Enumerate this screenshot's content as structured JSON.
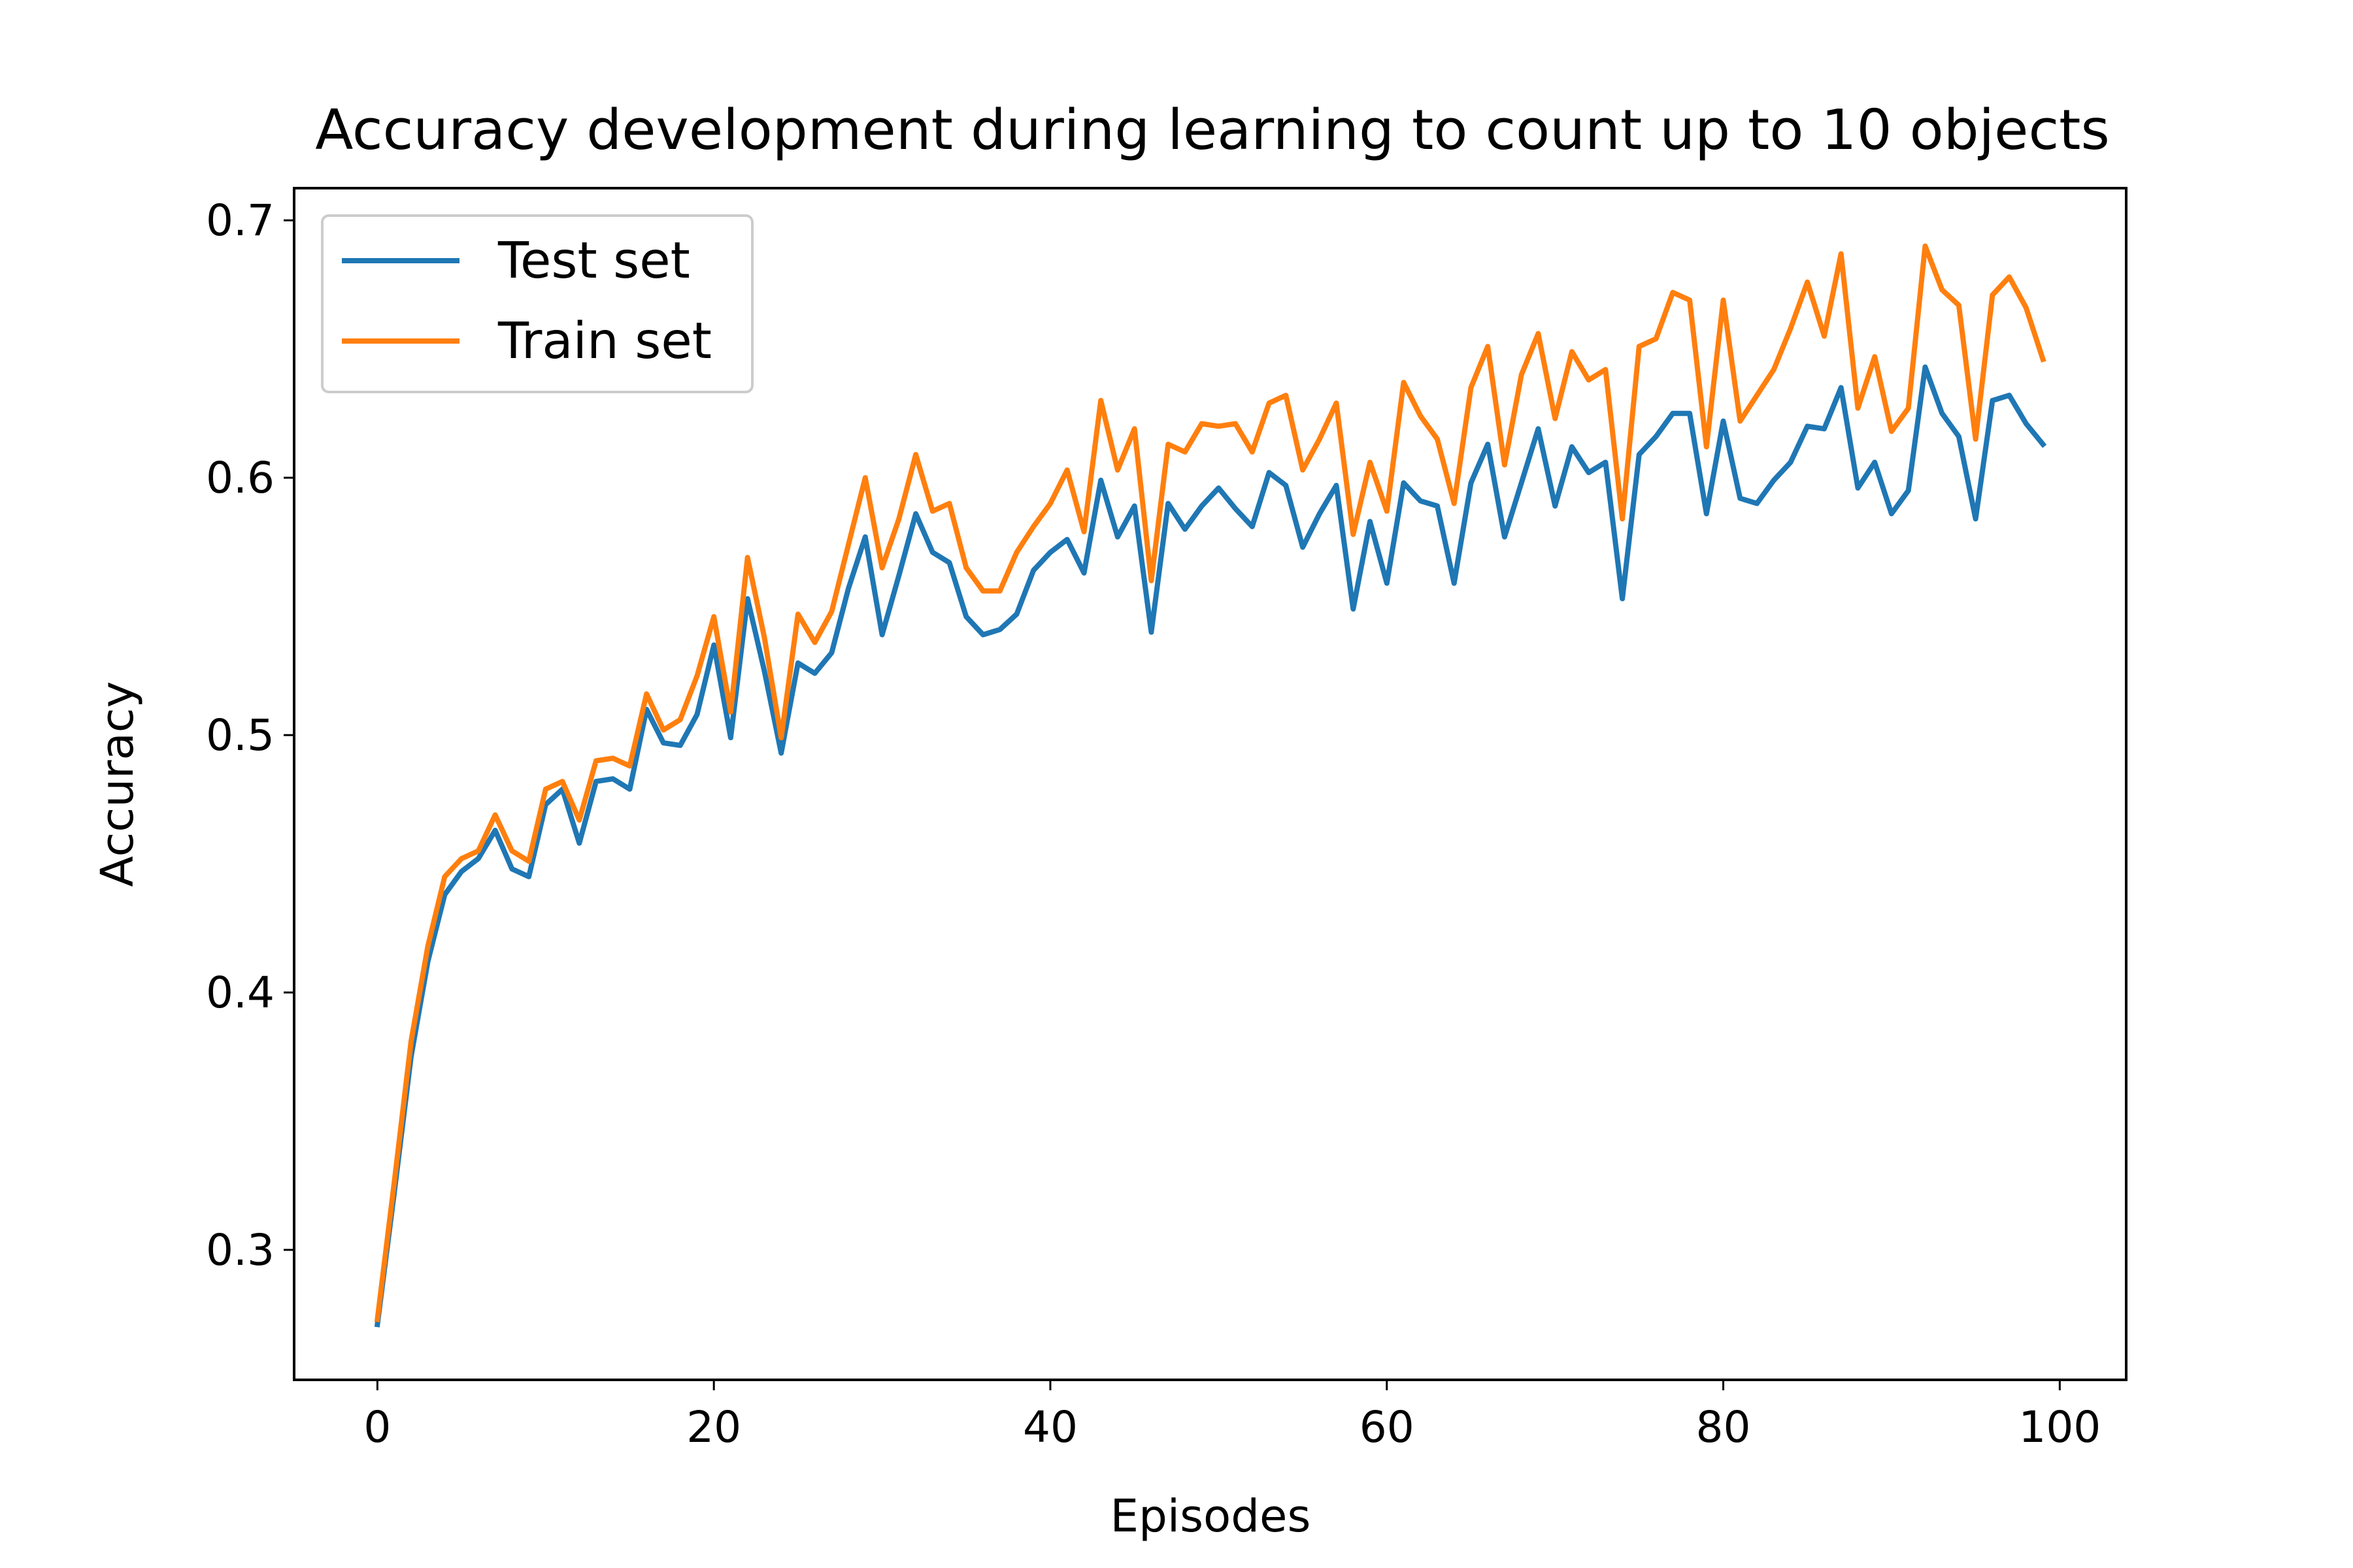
{
  "chart_data": {
    "type": "line",
    "title": "Accuracy development during learning to count up to 10 objects",
    "xlabel": "Episodes",
    "ylabel": "Accuracy",
    "xlim": [
      -4.95,
      103.95
    ],
    "ylim": [
      0.2495,
      0.7125
    ],
    "xticks": [
      0,
      20,
      40,
      60,
      80,
      100
    ],
    "yticks": [
      0.3,
      0.4,
      0.5,
      0.6,
      0.7
    ],
    "xtick_labels": [
      "0",
      "20",
      "40",
      "60",
      "80",
      "100"
    ],
    "ytick_labels": [
      "0.3",
      "0.4",
      "0.5",
      "0.6",
      "0.7"
    ],
    "grid": false,
    "legend_position": "upper-left",
    "x": [
      0,
      1,
      2,
      3,
      4,
      5,
      6,
      7,
      8,
      9,
      10,
      11,
      12,
      13,
      14,
      15,
      16,
      17,
      18,
      19,
      20,
      21,
      22,
      23,
      24,
      25,
      26,
      27,
      28,
      29,
      30,
      31,
      32,
      33,
      34,
      35,
      36,
      37,
      38,
      39,
      40,
      41,
      42,
      43,
      44,
      45,
      46,
      47,
      48,
      49,
      50,
      51,
      52,
      53,
      54,
      55,
      56,
      57,
      58,
      59,
      60,
      61,
      62,
      63,
      64,
      65,
      66,
      67,
      68,
      69,
      70,
      71,
      72,
      73,
      74,
      75,
      76,
      77,
      78,
      79,
      80,
      81,
      82,
      83,
      84,
      85,
      86,
      87,
      88,
      89,
      90,
      91,
      92,
      93,
      94,
      95,
      96,
      97,
      98,
      99
    ],
    "series": [
      {
        "name": "Test set",
        "color": "#1f77b4",
        "values": [
          0.271,
          0.322,
          0.375,
          0.412,
          0.438,
          0.447,
          0.452,
          0.463,
          0.448,
          0.445,
          0.473,
          0.479,
          0.458,
          0.482,
          0.483,
          0.479,
          0.51,
          0.497,
          0.496,
          0.508,
          0.535,
          0.499,
          0.553,
          0.525,
          0.493,
          0.528,
          0.524,
          0.532,
          0.557,
          0.577,
          0.539,
          0.562,
          0.586,
          0.571,
          0.567,
          0.546,
          0.539,
          0.541,
          0.547,
          0.564,
          0.571,
          0.576,
          0.563,
          0.599,
          0.577,
          0.589,
          0.54,
          0.59,
          0.58,
          0.589,
          0.596,
          0.588,
          0.581,
          0.602,
          0.597,
          0.573,
          0.586,
          0.597,
          0.549,
          0.583,
          0.559,
          0.598,
          0.591,
          0.589,
          0.559,
          0.598,
          0.613,
          0.577,
          0.598,
          0.619,
          0.589,
          0.612,
          0.602,
          0.606,
          0.553,
          0.609,
          0.616,
          0.625,
          0.625,
          0.586,
          0.622,
          0.592,
          0.59,
          0.599,
          0.606,
          0.62,
          0.619,
          0.635,
          0.596,
          0.606,
          0.586,
          0.595,
          0.643,
          0.625,
          0.616,
          0.584,
          0.63,
          0.632,
          0.621,
          0.613
        ]
      },
      {
        "name": "Train set",
        "color": "#ff7f0e",
        "values": [
          0.273,
          0.326,
          0.381,
          0.418,
          0.445,
          0.452,
          0.455,
          0.469,
          0.455,
          0.451,
          0.479,
          0.482,
          0.467,
          0.49,
          0.491,
          0.488,
          0.516,
          0.502,
          0.506,
          0.523,
          0.546,
          0.509,
          0.569,
          0.538,
          0.499,
          0.547,
          0.536,
          0.548,
          0.574,
          0.6,
          0.565,
          0.584,
          0.609,
          0.587,
          0.59,
          0.565,
          0.556,
          0.556,
          0.571,
          0.581,
          0.59,
          0.603,
          0.579,
          0.63,
          0.603,
          0.619,
          0.56,
          0.613,
          0.61,
          0.621,
          0.62,
          0.621,
          0.61,
          0.629,
          0.632,
          0.603,
          0.615,
          0.629,
          0.578,
          0.606,
          0.587,
          0.637,
          0.624,
          0.615,
          0.59,
          0.635,
          0.651,
          0.605,
          0.64,
          0.656,
          0.623,
          0.649,
          0.638,
          0.642,
          0.584,
          0.651,
          0.654,
          0.672,
          0.669,
          0.612,
          0.669,
          0.622,
          0.632,
          0.642,
          0.658,
          0.676,
          0.655,
          0.687,
          0.627,
          0.647,
          0.618,
          0.627,
          0.69,
          0.673,
          0.667,
          0.615,
          0.671,
          0.678,
          0.666,
          0.646
        ]
      }
    ]
  }
}
